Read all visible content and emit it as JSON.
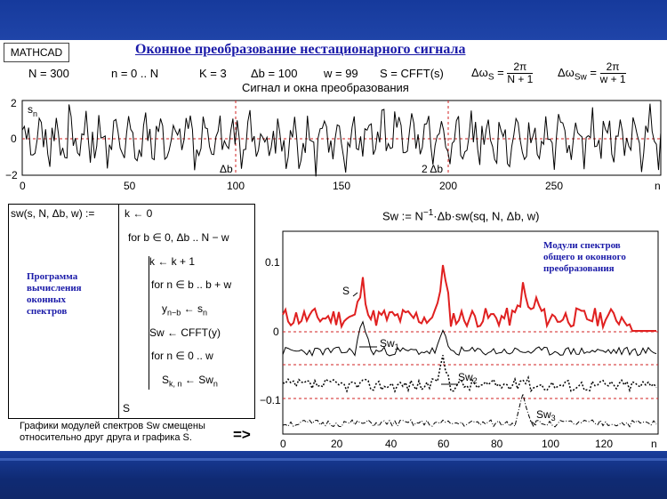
{
  "window": {
    "app_label": "MATHCAD"
  },
  "title": "Оконное преобразование нестационарного сигнала",
  "params": {
    "N": "N = 300",
    "n": "n = 0 .. N",
    "K": "K = 3",
    "db": "Δb = 100",
    "w": "w = 99",
    "S": "S = CFFT(s)",
    "dws_label": "Δω",
    "dws_sub": "S",
    "dws_num": "2π",
    "dws_den": "N + 1",
    "dwsw_label": "Δω",
    "dwsw_sub": "Sw",
    "dwsw_num": "2π",
    "dwsw_den": "w + 1"
  },
  "top_chart": {
    "subtitle": "Сигнал и окна преобразования",
    "y_label": "s",
    "y_label_sub": "n",
    "y_ticks": [
      "2",
      "0",
      "−2"
    ],
    "x_ticks": [
      "0",
      "50",
      "100",
      "150",
      "200",
      "250"
    ],
    "x_end_label": "n",
    "marker1": "Δb",
    "marker2": "2 Δb"
  },
  "program": {
    "signature": "sw(s, N, Δb, w) :=",
    "lines": [
      "k ← 0",
      "for  b ∈ 0, Δb .. N − w",
      "k ← k + 1",
      "for  n ∈ b .. b + w",
      "y",
      "Sw ← CFFT(y)",
      "for  n ∈ 0 .. w",
      "S"
    ],
    "y_sub": "n−b",
    "y_rhs": " ← s",
    "y_rhs_sub": "n",
    "s_sub": "k, n",
    "s_rhs": " ← Sw",
    "s_rhs_sub": "n",
    "return": "S",
    "caption": "Программа вычисления оконных спектров"
  },
  "bottom_chart": {
    "formula": "Sw := N",
    "formula_sup": "−1",
    "formula_rest": "·Δb·sw(sq, N, Δb, w)",
    "legend": "Модули спектров общего и оконного преобразования",
    "y_ticks": [
      "0.1",
      "0",
      "−0.1"
    ],
    "x_ticks": [
      "0",
      "20",
      "40",
      "60",
      "80",
      "100",
      "120"
    ],
    "x_end_label": "n",
    "label_S": "S",
    "label_Sw1": "Sw",
    "label_Sw1_sub": "1",
    "label_Sw2": "Sw",
    "label_Sw2_sub": "2",
    "label_Sw3": "Sw",
    "label_Sw3_sub": "3"
  },
  "note": "Графики модулей спектров Sw смещены относительно друг друга и графика S.",
  "arrow": "=>",
  "colors": {
    "title": "#1a1aa8",
    "red_curve": "#e02020",
    "background": "#1d3e98"
  }
}
